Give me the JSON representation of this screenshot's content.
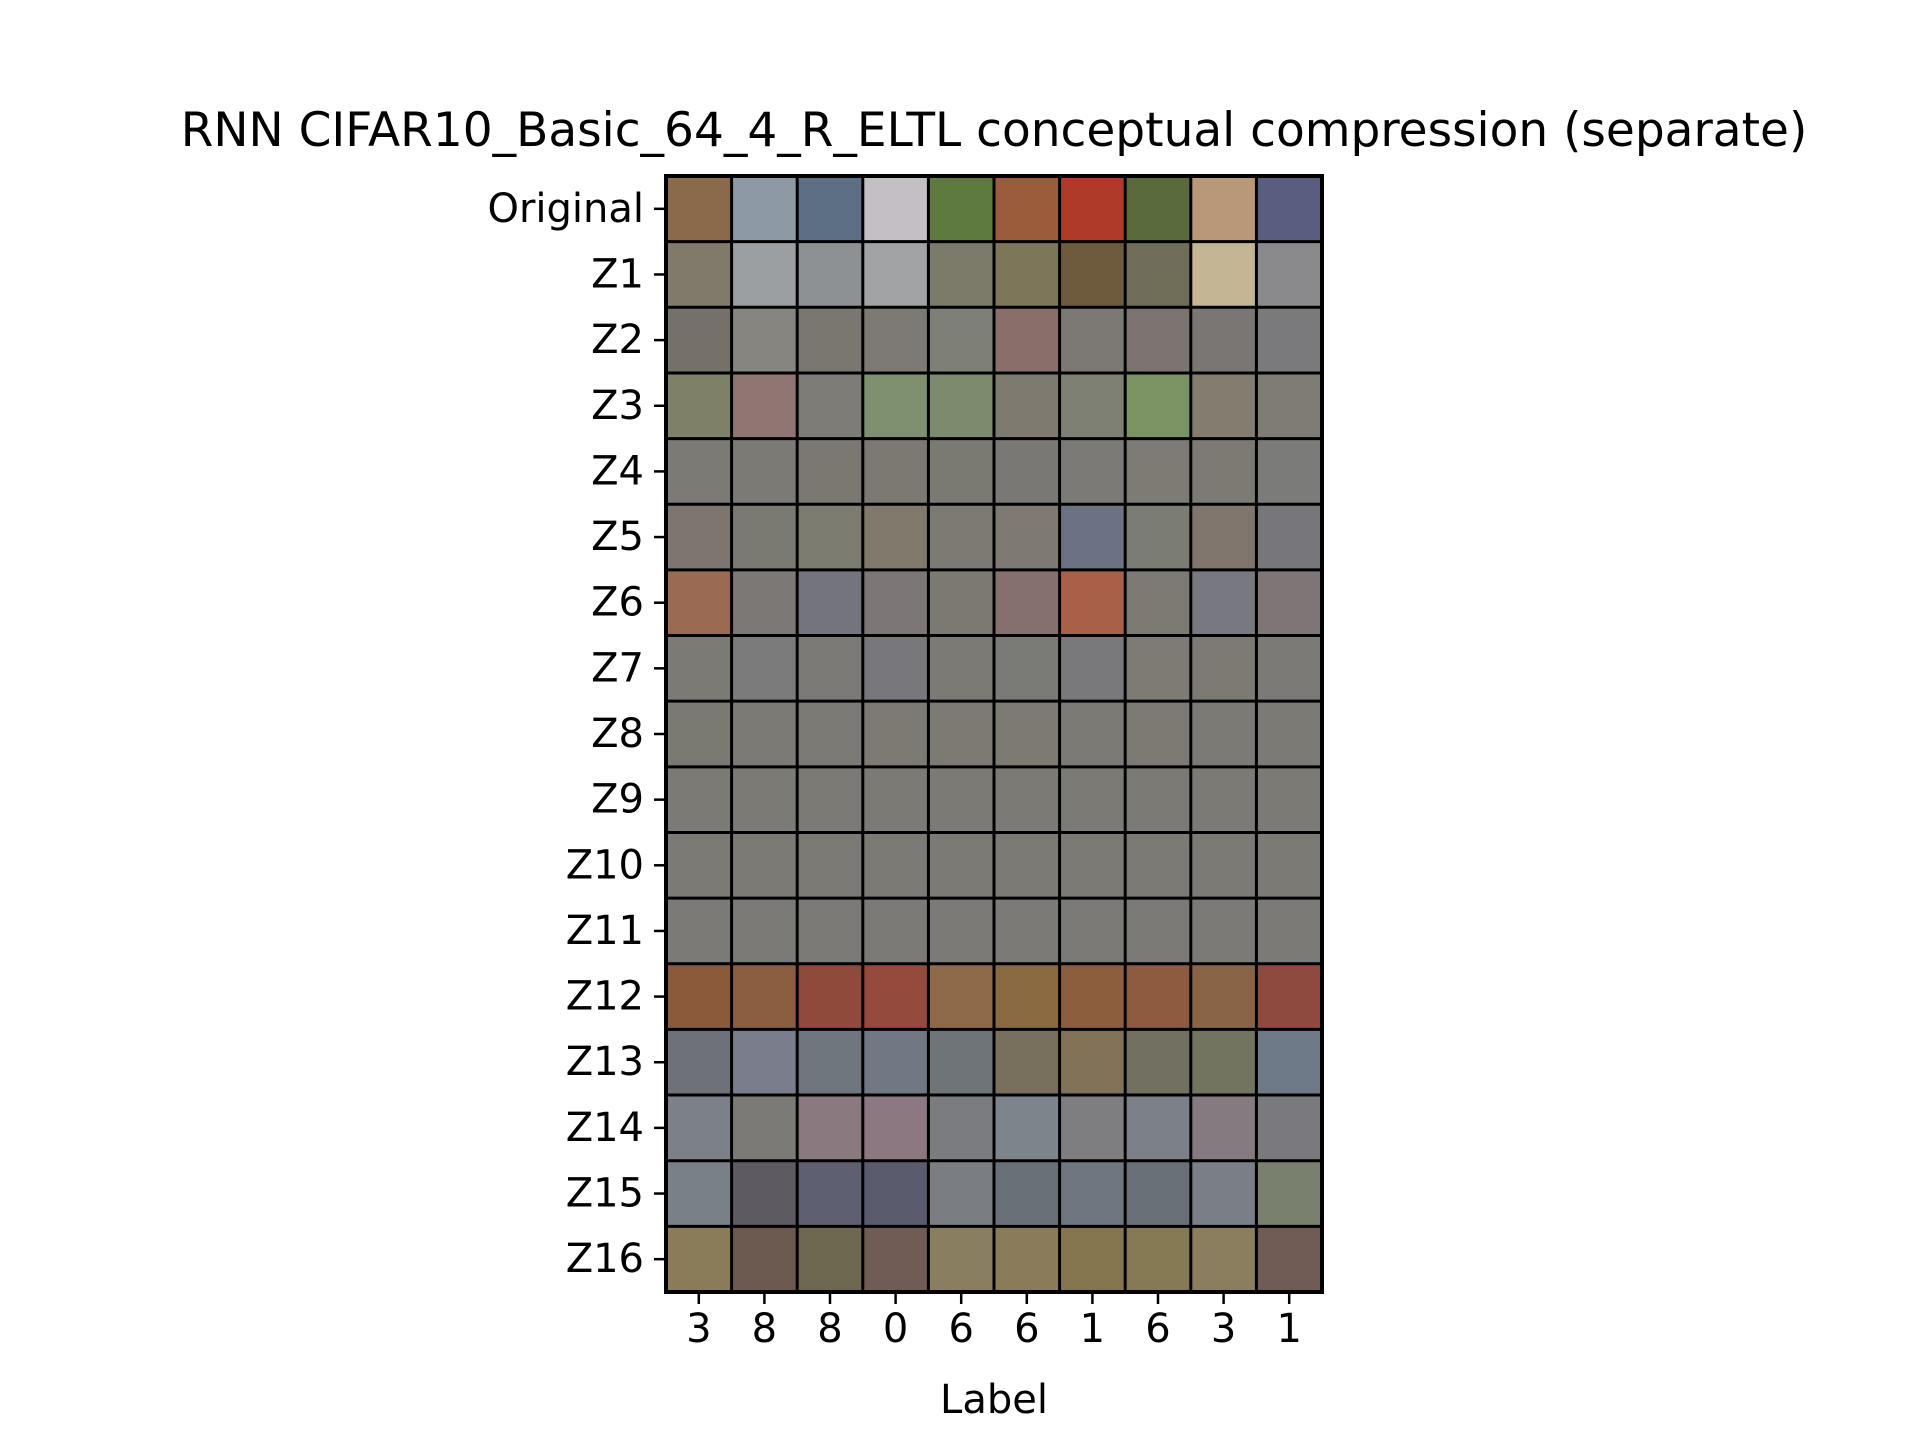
{
  "chart_data": {
    "type": "table",
    "title": "RNN CIFAR10_Basic_64_4_R_ELTL conceptual compression (separate)",
    "xlabel": "Label",
    "ylabel": "",
    "columns": [
      "3",
      "8",
      "8",
      "0",
      "6",
      "6",
      "1",
      "6",
      "3",
      "1"
    ],
    "rows": [
      "Original",
      "Z1",
      "Z2",
      "Z3",
      "Z4",
      "Z5",
      "Z6",
      "Z7",
      "Z8",
      "Z9",
      "Z10",
      "Z11",
      "Z12",
      "Z13",
      "Z14",
      "Z15",
      "Z16"
    ],
    "grid": true,
    "legend": "none",
    "cell_colors": [
      [
        "#8a6a4a",
        "#8d9aa6",
        "#5c6f84",
        "#c4bfc4",
        "#5f7a3e",
        "#9a5c3a",
        "#b03a2a",
        "#5a6a3c",
        "#b89878",
        "#5a5c80"
      ],
      [
        "#7f7a6a",
        "#9b9fa2",
        "#8e9194",
        "#a1a3a4",
        "#7c7a68",
        "#7d7658",
        "#6e5a3c",
        "#706e58",
        "#c4b694",
        "#8a8a8c"
      ],
      [
        "#75706a",
        "#86857f",
        "#7a7670",
        "#7d7a76",
        "#7e7f76",
        "#8a6e6a",
        "#7c7874",
        "#7b7470",
        "#7a7674",
        "#7a7a7c"
      ],
      [
        "#7e8068",
        "#8f7672",
        "#7d7c76",
        "#7f9070",
        "#7c8a6e",
        "#7f7a70",
        "#7d8072",
        "#7c9464",
        "#857c70",
        "#7e7c74"
      ],
      [
        "#7b7a74",
        "#7c7a74",
        "#7b7872",
        "#7c7872",
        "#7b7a72",
        "#7a7874",
        "#7c7a76",
        "#7e7a74",
        "#7c7a72",
        "#7b7b7a"
      ],
      [
        "#7d7670",
        "#7b7a72",
        "#7c7c70",
        "#807a6c",
        "#7c7a72",
        "#7e7a72",
        "#6c7284",
        "#7b7c72",
        "#81766e",
        "#77767a"
      ],
      [
        "#9a6a52",
        "#7c7876",
        "#74747e",
        "#7c7676",
        "#7c7a70",
        "#85706e",
        "#a86048",
        "#7d7a74",
        "#777880",
        "#7e7676"
      ],
      [
        "#7c7a74",
        "#7b7b7c",
        "#7c7a76",
        "#78787c",
        "#7c7a74",
        "#7a7a76",
        "#79797c",
        "#7e7a74",
        "#7d7a74",
        "#7c7a76"
      ],
      [
        "#7b7a72",
        "#7c7a74",
        "#7c7a74",
        "#7c7a72",
        "#7c7a72",
        "#7d7a72",
        "#7b7a74",
        "#7c7a72",
        "#7c7a74",
        "#7c7a74"
      ],
      [
        "#7b7a74",
        "#7b7a74",
        "#7b7a74",
        "#7b7a74",
        "#7b7a74",
        "#7b7a74",
        "#7b7a74",
        "#7b7a74",
        "#7b7a74",
        "#7b7a74"
      ],
      [
        "#7c7a75",
        "#7c7a75",
        "#7c7a75",
        "#7c7a75",
        "#7c7a75",
        "#7c7a75",
        "#7c7a75",
        "#7c7a75",
        "#7c7a75",
        "#7c7a75"
      ],
      [
        "#7b7a77",
        "#7b7a77",
        "#7b7a77",
        "#7b7a77",
        "#7b7a77",
        "#7b7a77",
        "#7b7a77",
        "#7b7a77",
        "#7b7a77",
        "#7b7a77"
      ],
      [
        "#8a5a3a",
        "#8c5e40",
        "#904a3c",
        "#944a3c",
        "#8e6a48",
        "#8a6a40",
        "#8c5e3e",
        "#8e5a40",
        "#8a6446",
        "#8e4a3e"
      ],
      [
        "#6e7278",
        "#7a7e8c",
        "#70767e",
        "#707884",
        "#6e7478",
        "#78705c",
        "#827258",
        "#727060",
        "#727460",
        "#6e7a88"
      ],
      [
        "#7c8088",
        "#7c7a76",
        "#8a7a80",
        "#8c7880",
        "#7a7c80",
        "#7c848c",
        "#7e7e80",
        "#7c8088",
        "#847a80",
        "#7a7a7e"
      ],
      [
        "#7a8088",
        "#5e5a62",
        "#5e6072",
        "#5a5c6e",
        "#7a7e82",
        "#6a7078",
        "#6e7680",
        "#6a7078",
        "#7a7e86",
        "#7a806e"
      ],
      [
        "#8a7c58",
        "#6c5a50",
        "#6e6850",
        "#705c54",
        "#8a7e60",
        "#8a7c5a",
        "#867650",
        "#867a54",
        "#8a7e5e",
        "#705c54"
      ]
    ]
  }
}
